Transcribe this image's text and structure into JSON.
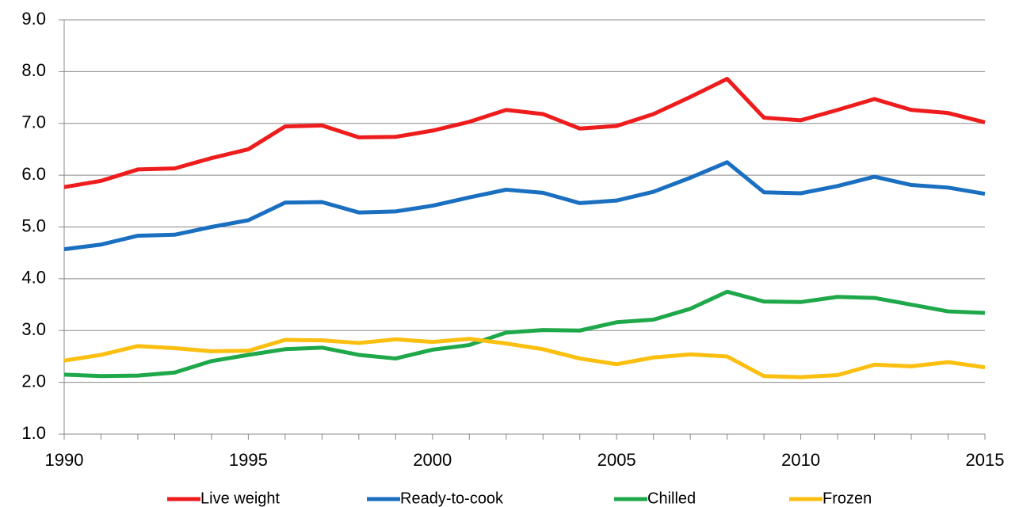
{
  "chart_data": {
    "type": "line",
    "x": [
      1990,
      1991,
      1992,
      1993,
      1994,
      1995,
      1996,
      1997,
      1998,
      1999,
      2000,
      2001,
      2002,
      2003,
      2004,
      2005,
      2006,
      2007,
      2008,
      2009,
      2010,
      2011,
      2012,
      2013,
      2014,
      2015
    ],
    "series": [
      {
        "name": "Live weight",
        "color": "#ee1c1c",
        "values": [
          5.77,
          5.89,
          6.11,
          6.13,
          6.33,
          6.5,
          6.94,
          6.96,
          6.73,
          6.74,
          6.86,
          7.03,
          7.26,
          7.18,
          6.9,
          6.95,
          7.18,
          7.51,
          7.86,
          7.11,
          7.06,
          7.26,
          7.47,
          7.26,
          7.2,
          7.02
        ]
      },
      {
        "name": "Ready-to-cook",
        "color": "#1a6fc1",
        "values": [
          4.57,
          4.66,
          4.83,
          4.85,
          5.0,
          5.13,
          5.47,
          5.48,
          5.28,
          5.3,
          5.41,
          5.57,
          5.72,
          5.66,
          5.46,
          5.51,
          5.68,
          5.95,
          6.25,
          5.67,
          5.65,
          5.79,
          5.97,
          5.81,
          5.76,
          5.64
        ]
      },
      {
        "name": "Chilled",
        "color": "#1fa84a",
        "values": [
          2.15,
          2.12,
          2.13,
          2.19,
          2.41,
          2.53,
          2.64,
          2.67,
          2.53,
          2.46,
          2.63,
          2.72,
          2.96,
          3.01,
          3.0,
          3.16,
          3.21,
          3.42,
          3.75,
          3.56,
          3.55,
          3.65,
          3.63,
          3.5,
          3.37,
          3.34
        ]
      },
      {
        "name": "Frozen",
        "color": "#fbbf10",
        "values": [
          2.42,
          2.53,
          2.7,
          2.66,
          2.6,
          2.61,
          2.82,
          2.81,
          2.76,
          2.83,
          2.78,
          2.84,
          2.75,
          2.64,
          2.46,
          2.35,
          2.48,
          2.54,
          2.5,
          2.12,
          2.1,
          2.14,
          2.34,
          2.31,
          2.39,
          2.29
        ]
      }
    ],
    "xlim": [
      1990,
      2015
    ],
    "xticks": [
      1990,
      1995,
      2000,
      2005,
      2010,
      2015
    ],
    "ylim": [
      1,
      9
    ],
    "yticks": [
      {
        "value": 1,
        "label": "1.0"
      },
      {
        "value": 2,
        "label": "2.0"
      },
      {
        "value": 3,
        "label": "3.0"
      },
      {
        "value": 4,
        "label": "4.0"
      },
      {
        "value": 5,
        "label": "5.0"
      },
      {
        "value": 6,
        "label": "6.0"
      },
      {
        "value": 7,
        "label": "7.0"
      },
      {
        "value": 8,
        "label": "8.0"
      },
      {
        "value": 9,
        "label": "9.0"
      }
    ],
    "grid": true
  }
}
